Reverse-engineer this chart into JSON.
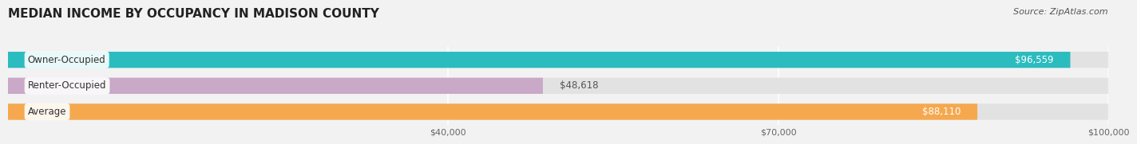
{
  "title": "MEDIAN INCOME BY OCCUPANCY IN MADISON COUNTY",
  "source": "Source: ZipAtlas.com",
  "categories": [
    "Owner-Occupied",
    "Renter-Occupied",
    "Average"
  ],
  "values": [
    96559,
    48618,
    88110
  ],
  "bar_colors": [
    "#2BBCBF",
    "#C9A8C8",
    "#F5A84E"
  ],
  "bar_labels": [
    "$96,559",
    "$48,618",
    "$88,110"
  ],
  "label_inside": [
    true,
    false,
    true
  ],
  "xlim": [
    0,
    100000
  ],
  "xticks": [
    40000,
    70000,
    100000
  ],
  "xtick_labels": [
    "$40,000",
    "$70,000",
    "$100,000"
  ],
  "background_color": "#f2f2f2",
  "bar_background_color": "#e2e2e2",
  "title_fontsize": 11,
  "source_fontsize": 8,
  "label_fontsize": 8.5,
  "category_fontsize": 8.5,
  "bar_height": 0.62,
  "title_color": "#222222",
  "source_color": "#555555",
  "category_text_color": "#333333",
  "value_text_color_inside": "#ffffff",
  "value_text_color_outside": "#555555"
}
